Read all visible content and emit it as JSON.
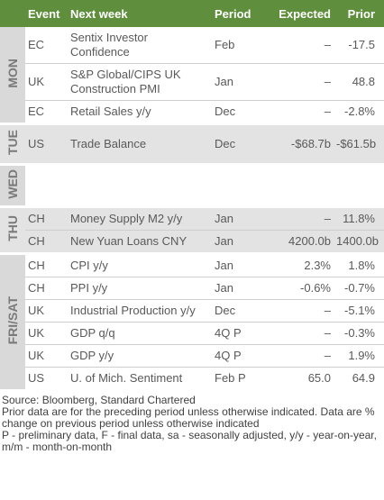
{
  "header": {
    "event": "Event",
    "next_week": "Next week",
    "period": "Period",
    "expected": "Expected",
    "prior": "Prior"
  },
  "groups": [
    {
      "day": "MON",
      "shaded": false,
      "rows": [
        {
          "country": "EC",
          "event": "Sentix Investor Confidence",
          "period": "Feb",
          "expected": "–",
          "prior": "-17.5"
        },
        {
          "country": "UK",
          "event": "S&P Global/CIPS UK Construction PMI",
          "period": "Jan",
          "expected": "–",
          "prior": "48.8"
        },
        {
          "country": "EC",
          "event": "Retail Sales y/y",
          "period": "Dec",
          "expected": "–",
          "prior": "-2.8%"
        }
      ]
    },
    {
      "day": "TUE",
      "shaded": true,
      "rows": [
        {
          "country": "US",
          "event": "Trade Balance",
          "period": "Dec",
          "expected": "-$68.7b",
          "prior": "-$61.5b"
        }
      ]
    },
    {
      "day": "WED",
      "shaded": false,
      "rows": []
    },
    {
      "day": "THU",
      "shaded": true,
      "rows": [
        {
          "country": "CH",
          "event": "Money Supply M2 y/y",
          "period": "Jan",
          "expected": "–",
          "prior": "11.8%"
        },
        {
          "country": "CH",
          "event": "New Yuan Loans CNY",
          "period": "Jan",
          "expected": "4200.0b",
          "prior": "1400.0b"
        }
      ]
    },
    {
      "day": "FRI/SAT",
      "shaded": false,
      "rows": [
        {
          "country": "CH",
          "event": "CPI y/y",
          "period": "Jan",
          "expected": "2.3%",
          "prior": "1.8%"
        },
        {
          "country": "CH",
          "event": "PPI y/y",
          "period": "Jan",
          "expected": "-0.6%",
          "prior": "-0.7%"
        },
        {
          "country": "UK",
          "event": "Industrial Production y/y",
          "period": "Dec",
          "expected": "–",
          "prior": "-5.1%"
        },
        {
          "country": "UK",
          "event": "GDP q/q",
          "period": "4Q P",
          "expected": "–",
          "prior": "-0.3%"
        },
        {
          "country": "UK",
          "event": "GDP y/y",
          "period": "4Q P",
          "expected": "–",
          "prior": "1.9%"
        },
        {
          "country": "US",
          "event": "U. of Mich. Sentiment",
          "period": "Feb P",
          "expected": "65.0",
          "prior": "64.9"
        }
      ]
    }
  ],
  "footnotes": [
    "Source: Bloomberg, Standard Chartered",
    "Prior data are for the preceding period unless otherwise indicated. Data are % change on previous period unless otherwise indicated",
    "P - preliminary data, F - final data, sa - seasonally adjusted, y/y - year-on-year, m/m - month-on-month"
  ]
}
